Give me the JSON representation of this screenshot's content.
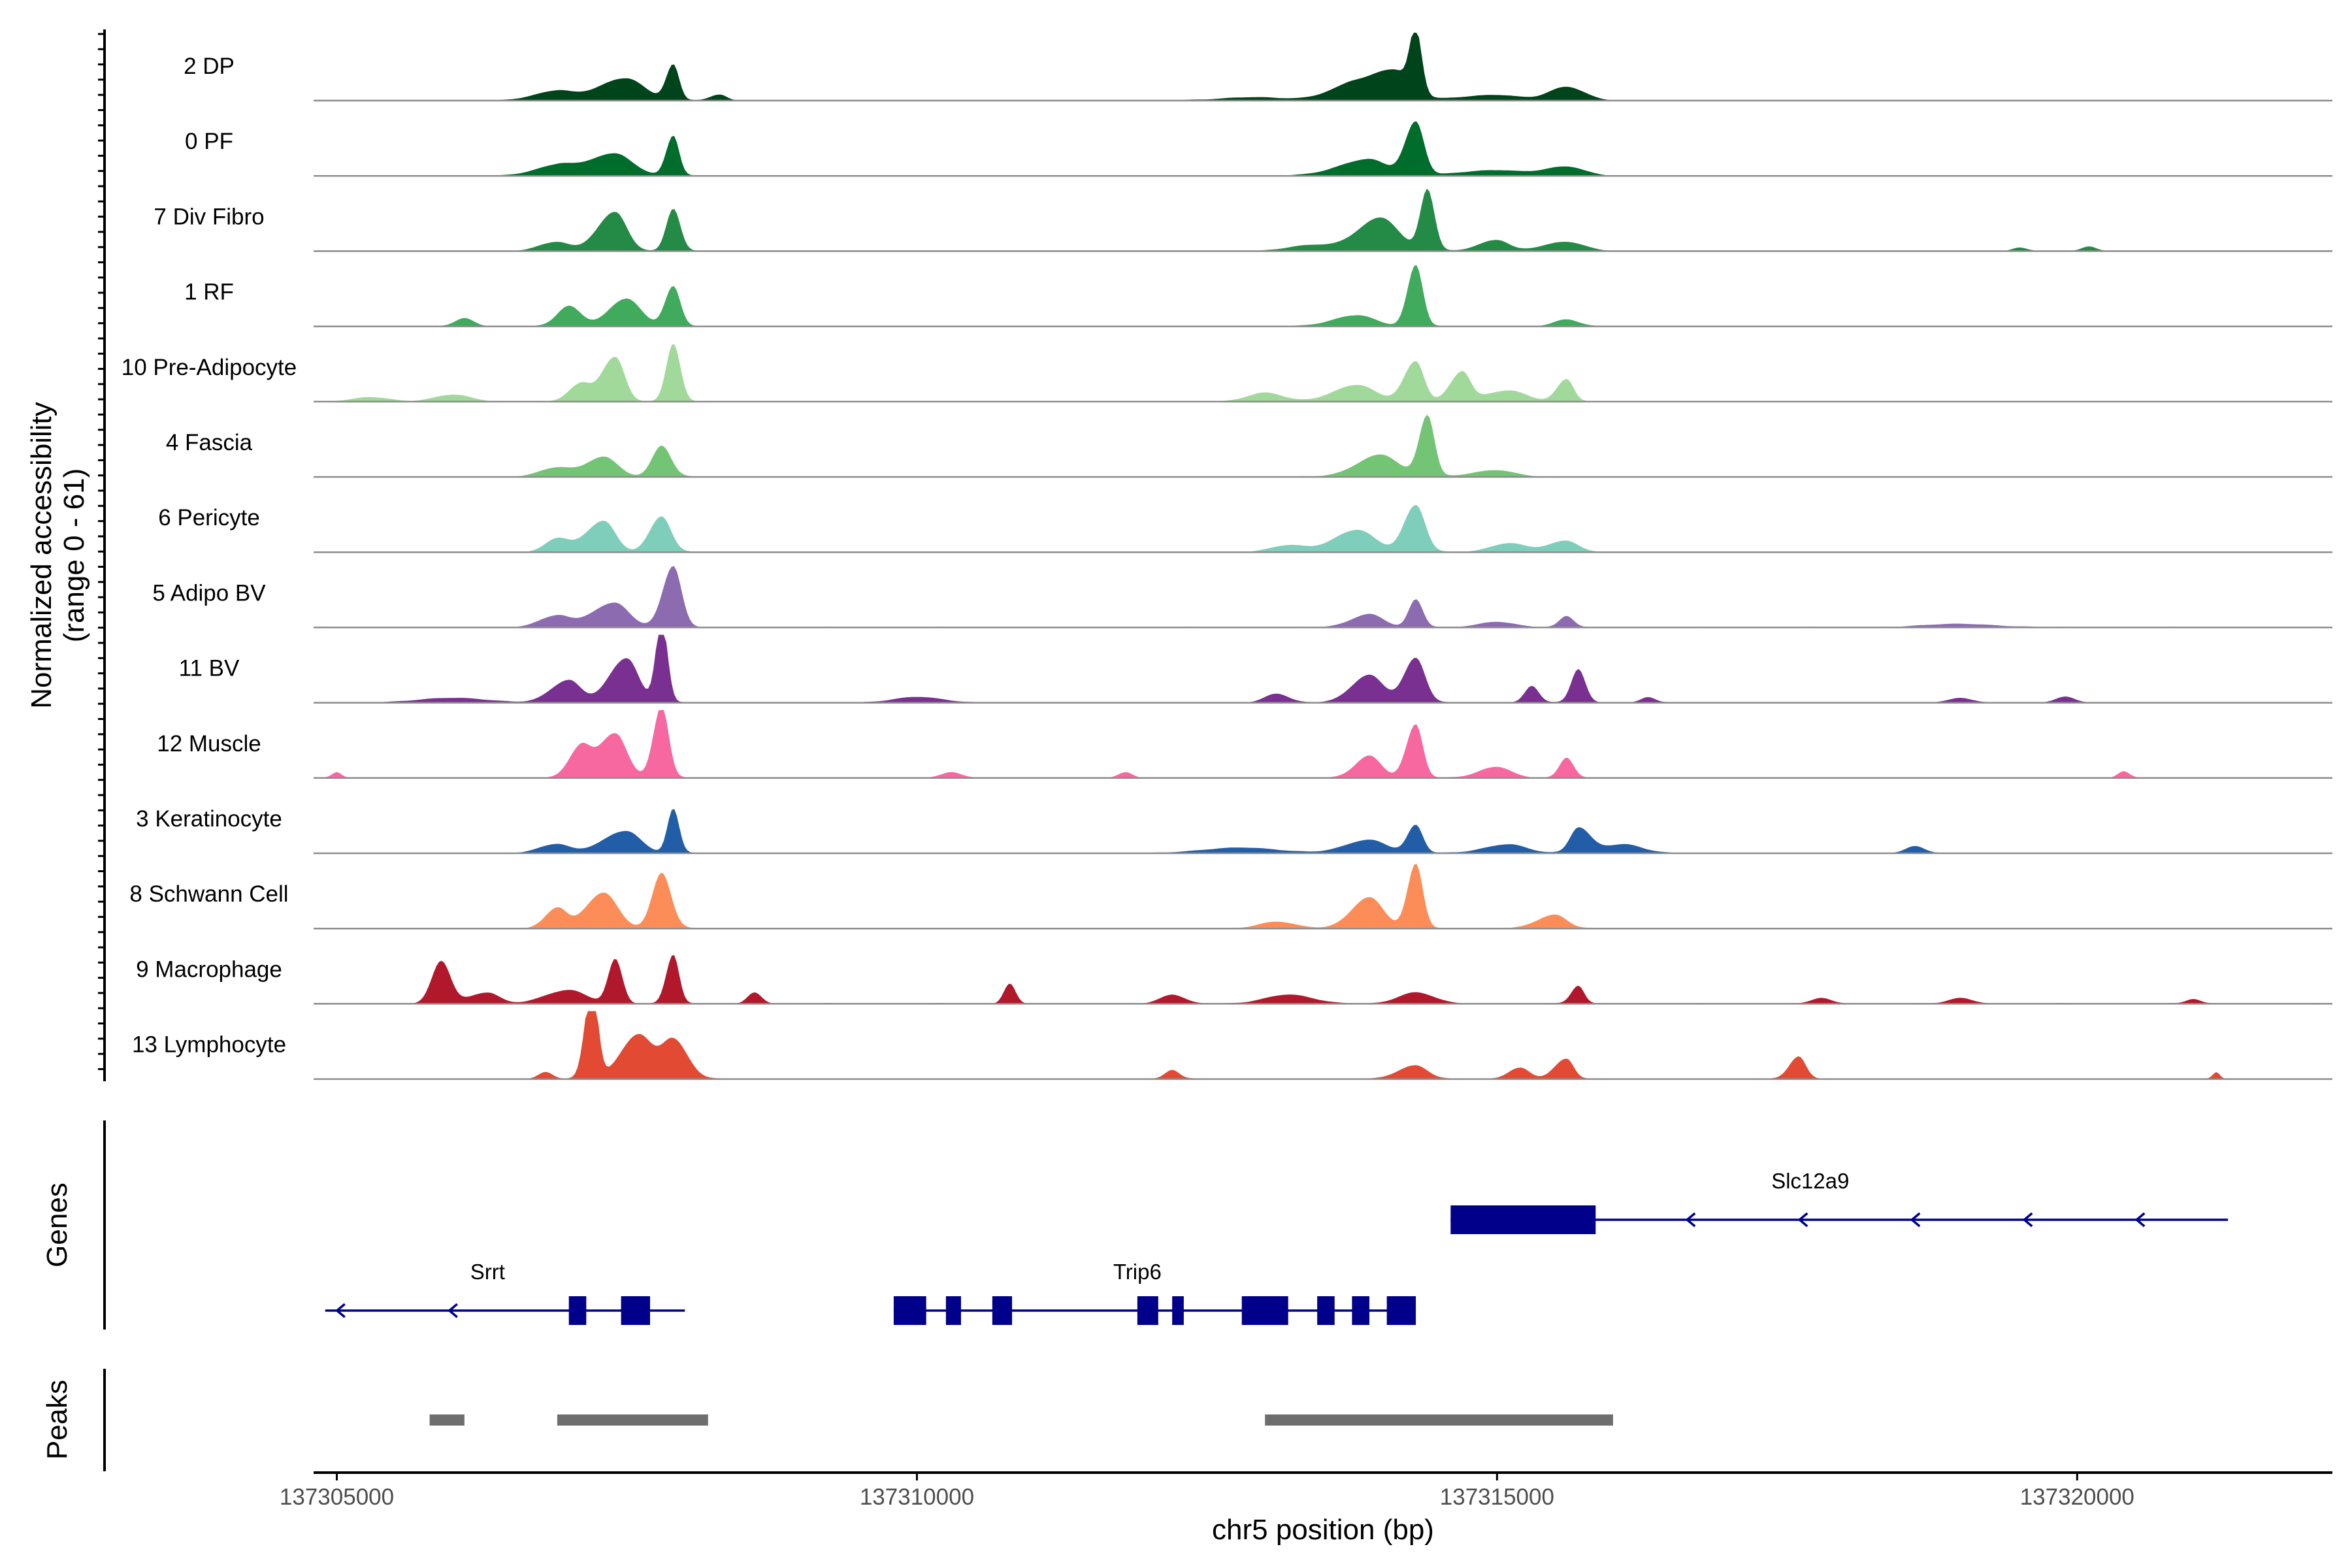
{
  "chart_data": {
    "type": "area",
    "title": "",
    "ylabel_line1": "Normalized accessibility",
    "ylabel_line2": "(range 0 - 61)",
    "y_range": [
      0,
      61
    ],
    "xlabel": "chr5 position (bp)",
    "x_range": [
      137304800,
      137322200
    ],
    "x_ticks": [
      137305000,
      137310000,
      137315000,
      137320000
    ],
    "x_tick_labels": [
      "137305000",
      "137310000",
      "137315000",
      "137320000"
    ],
    "panel_labels": {
      "genes": "Genes",
      "peaks": "Peaks"
    },
    "tracks": [
      {
        "name": "2 DP",
        "color": "#00441b",
        "peaks": [
          [
            137307900,
            32,
            60,
            50
          ],
          [
            137307500,
            20,
            250,
            150
          ],
          [
            137306900,
            8,
            200,
            120
          ],
          [
            137308300,
            5,
            80,
            60
          ],
          [
            137314300,
            55,
            50,
            50
          ],
          [
            137314100,
            28,
            250,
            150
          ],
          [
            137313700,
            8,
            200,
            120
          ],
          [
            137315600,
            12,
            150,
            150
          ],
          [
            137315000,
            5,
            300,
            200
          ],
          [
            137312900,
            3,
            250,
            250
          ]
        ]
      },
      {
        "name": "0 PF",
        "color": "#006d2c",
        "peaks": [
          [
            137307900,
            36,
            60,
            50
          ],
          [
            137307400,
            20,
            250,
            150
          ],
          [
            137306900,
            8,
            200,
            120
          ],
          [
            137314300,
            48,
            90,
            70
          ],
          [
            137313900,
            15,
            250,
            150
          ],
          [
            137315600,
            8,
            200,
            150
          ],
          [
            137315000,
            5,
            300,
            200
          ]
        ]
      },
      {
        "name": "7 Div Fibro",
        "color": "#238b45",
        "peaks": [
          [
            137307900,
            38,
            60,
            60
          ],
          [
            137307400,
            35,
            150,
            100
          ],
          [
            137306900,
            8,
            150,
            100
          ],
          [
            137314400,
            55,
            60,
            60
          ],
          [
            137314000,
            30,
            200,
            150
          ],
          [
            137315000,
            10,
            150,
            100
          ],
          [
            137315600,
            8,
            200,
            150
          ],
          [
            137313400,
            5,
            200,
            200
          ],
          [
            137320100,
            4,
            60,
            60
          ],
          [
            137319500,
            3,
            60,
            60
          ]
        ]
      },
      {
        "name": "1 RF",
        "color": "#41ab5d",
        "peaks": [
          [
            137307900,
            36,
            70,
            60
          ],
          [
            137307500,
            25,
            150,
            120
          ],
          [
            137307000,
            18,
            100,
            100
          ],
          [
            137306100,
            7,
            80,
            80
          ],
          [
            137314300,
            55,
            70,
            60
          ],
          [
            137313800,
            10,
            200,
            150
          ],
          [
            137315600,
            6,
            100,
            100
          ]
        ]
      },
      {
        "name": "10 Pre-Adipocyte",
        "color": "#a1d99b",
        "peaks": [
          [
            137307900,
            52,
            60,
            60
          ],
          [
            137307400,
            40,
            120,
            80
          ],
          [
            137307100,
            15,
            100,
            80
          ],
          [
            137314300,
            36,
            100,
            70
          ],
          [
            137314700,
            26,
            100,
            70
          ],
          [
            137313800,
            15,
            200,
            150
          ],
          [
            137315600,
            20,
            80,
            60
          ],
          [
            137315100,
            10,
            200,
            150
          ],
          [
            137313000,
            8,
            150,
            150
          ],
          [
            137306000,
            6,
            150,
            150
          ],
          [
            137305300,
            4,
            150,
            150
          ]
        ]
      },
      {
        "name": "4 Fascia",
        "color": "#74c476",
        "peaks": [
          [
            137307800,
            28,
            80,
            80
          ],
          [
            137307300,
            18,
            150,
            120
          ],
          [
            137306900,
            8,
            150,
            120
          ],
          [
            137314400,
            55,
            70,
            60
          ],
          [
            137314000,
            20,
            200,
            150
          ],
          [
            137315000,
            6,
            200,
            150
          ]
        ]
      },
      {
        "name": "6 Pericyte",
        "color": "#7fcdbb",
        "peaks": [
          [
            137307800,
            32,
            100,
            80
          ],
          [
            137307300,
            28,
            150,
            100
          ],
          [
            137306900,
            12,
            100,
            100
          ],
          [
            137314300,
            42,
            100,
            80
          ],
          [
            137313800,
            20,
            200,
            150
          ],
          [
            137315600,
            10,
            150,
            100
          ],
          [
            137315100,
            8,
            150,
            150
          ],
          [
            137313200,
            6,
            150,
            150
          ]
        ]
      },
      {
        "name": "5 Adipo BV",
        "color": "#8c6bb1",
        "peaks": [
          [
            137307900,
            55,
            90,
            70
          ],
          [
            137307400,
            22,
            200,
            120
          ],
          [
            137306900,
            10,
            150,
            100
          ],
          [
            137314300,
            25,
            60,
            60
          ],
          [
            137313900,
            12,
            150,
            120
          ],
          [
            137315600,
            10,
            60,
            60
          ],
          [
            137315000,
            5,
            150,
            150
          ],
          [
            137319000,
            3,
            300,
            300
          ]
        ]
      },
      {
        "name": "11 BV",
        "color": "#7a3091",
        "peaks": [
          [
            137307800,
            75,
            50,
            50
          ],
          [
            137307500,
            40,
            150,
            100
          ],
          [
            137307000,
            20,
            150,
            100
          ],
          [
            137314300,
            40,
            100,
            80
          ],
          [
            137313900,
            25,
            150,
            120
          ],
          [
            137315700,
            30,
            60,
            60
          ],
          [
            137315300,
            15,
            60,
            60
          ],
          [
            137313100,
            8,
            100,
            100
          ],
          [
            137310000,
            5,
            200,
            200
          ],
          [
            137306000,
            4,
            300,
            300
          ],
          [
            137319900,
            5,
            80,
            80
          ],
          [
            137319000,
            4,
            100,
            100
          ],
          [
            137316300,
            5,
            60,
            60
          ]
        ]
      },
      {
        "name": "12 Muscle",
        "color": "#f768a1",
        "peaks": [
          [
            137307800,
            65,
            70,
            60
          ],
          [
            137307400,
            40,
            150,
            100
          ],
          [
            137307100,
            25,
            100,
            80
          ],
          [
            137314300,
            48,
            80,
            60
          ],
          [
            137313900,
            20,
            120,
            100
          ],
          [
            137315600,
            18,
            60,
            60
          ],
          [
            137315000,
            10,
            150,
            120
          ],
          [
            137310300,
            5,
            80,
            80
          ],
          [
            137311800,
            5,
            60,
            60
          ],
          [
            137305000,
            5,
            40,
            40
          ],
          [
            137320400,
            6,
            50,
            50
          ]
        ]
      },
      {
        "name": "3 Keratinocyte",
        "color": "#225ea8",
        "peaks": [
          [
            137307900,
            40,
            50,
            50
          ],
          [
            137307500,
            20,
            200,
            120
          ],
          [
            137306900,
            8,
            150,
            100
          ],
          [
            137314300,
            25,
            70,
            60
          ],
          [
            137313900,
            12,
            200,
            150
          ],
          [
            137315700,
            22,
            70,
            100
          ],
          [
            137316100,
            8,
            200,
            150
          ],
          [
            137315100,
            8,
            200,
            150
          ],
          [
            137318600,
            6,
            80,
            80
          ],
          [
            137312800,
            5,
            300,
            300
          ]
        ]
      },
      {
        "name": "8 Schwann Cell",
        "color": "#fc8d59",
        "peaks": [
          [
            137307800,
            50,
            80,
            80
          ],
          [
            137307300,
            32,
            150,
            120
          ],
          [
            137306900,
            18,
            100,
            80
          ],
          [
            137314300,
            58,
            70,
            60
          ],
          [
            137313900,
            28,
            150,
            120
          ],
          [
            137315500,
            12,
            150,
            100
          ],
          [
            137313100,
            6,
            150,
            150
          ]
        ]
      },
      {
        "name": "9 Macrophage",
        "color": "#b2182b",
        "peaks": [
          [
            137307900,
            44,
            60,
            50
          ],
          [
            137307400,
            40,
            60,
            60
          ],
          [
            137305900,
            38,
            80,
            80
          ],
          [
            137307000,
            12,
            200,
            150
          ],
          [
            137306300,
            10,
            150,
            100
          ],
          [
            137308600,
            10,
            60,
            60
          ],
          [
            137310800,
            18,
            50,
            50
          ],
          [
            137315700,
            16,
            60,
            50
          ],
          [
            137314300,
            10,
            150,
            150
          ],
          [
            137313200,
            8,
            200,
            200
          ],
          [
            137312200,
            8,
            100,
            100
          ],
          [
            137317800,
            5,
            80,
            80
          ],
          [
            137319000,
            5,
            100,
            100
          ],
          [
            137321000,
            4,
            60,
            60
          ]
        ]
      },
      {
        "name": "13 Lymphocyte",
        "color": "#e34a33",
        "peaks": [
          [
            137307200,
            85,
            60,
            50
          ],
          [
            137307600,
            40,
            150,
            120
          ],
          [
            137307900,
            35,
            100,
            120
          ],
          [
            137306800,
            6,
            60,
            60
          ],
          [
            137317600,
            20,
            80,
            60
          ],
          [
            137315600,
            18,
            100,
            60
          ],
          [
            137314300,
            12,
            150,
            100
          ],
          [
            137315200,
            10,
            100,
            80
          ],
          [
            137312200,
            8,
            60,
            60
          ],
          [
            137321200,
            6,
            30,
            30
          ]
        ]
      }
    ],
    "genes": [
      {
        "name": "Slc12a9",
        "start": 137314600,
        "end": 137321300,
        "strand": "-",
        "exons": [
          [
            137314600,
            137315850
          ]
        ],
        "row": 0,
        "label_x": 137317700
      },
      {
        "name": "Srrt",
        "start": 137304900,
        "end": 137308000,
        "strand": "-",
        "exons": [
          [
            137307000,
            137307150
          ],
          [
            137307450,
            137307700
          ]
        ],
        "row": 1,
        "label_x": 137306300
      },
      {
        "name": "Trip6",
        "start": 137309800,
        "end": 137314300,
        "strand": "-",
        "exons": [
          [
            137309800,
            137310080
          ],
          [
            137310250,
            137310380
          ],
          [
            137310650,
            137310820
          ],
          [
            137311900,
            137312080
          ],
          [
            137312200,
            137312300
          ],
          [
            137312800,
            137313200
          ],
          [
            137313450,
            137313600
          ],
          [
            137313750,
            137313900
          ],
          [
            137314050,
            137314300
          ]
        ],
        "row": 1,
        "label_x": 137311900
      }
    ],
    "peaks": [
      [
        137305800,
        137306100
      ],
      [
        137306900,
        137308200
      ],
      [
        137313000,
        137316000
      ]
    ]
  }
}
